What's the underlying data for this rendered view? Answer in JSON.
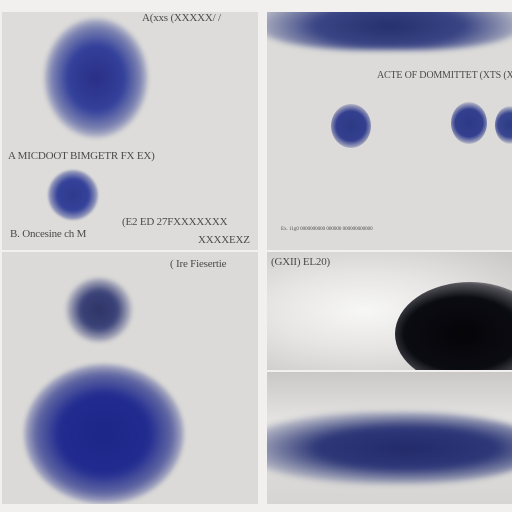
{
  "panel_tl": {
    "label_top": "A(xxs (XXXXX/ /",
    "label_mid": "A MICDOOT BIMGETR FX EX)",
    "label_low": "B. Oncesine ch M",
    "label_right_1": "(E2 ED 27FXXXXXXX",
    "label_right_2": "XXXXEXZ"
  },
  "panel_tr": {
    "label": "ACTE OF DOMMITTET (XTS (X",
    "caption": "Ex. 11g0 0000000000 000000 000000000000"
  },
  "panel_bl": {
    "label": "( Ire Fiesertie"
  },
  "panel_mr": {
    "label": "(GXII) EL20)"
  },
  "colors": {
    "panel_bg": "#d9d8d6",
    "blob_blue": "#2c3a8a",
    "blob_dark": "#0b0b14",
    "text": "#4a4a4c"
  }
}
